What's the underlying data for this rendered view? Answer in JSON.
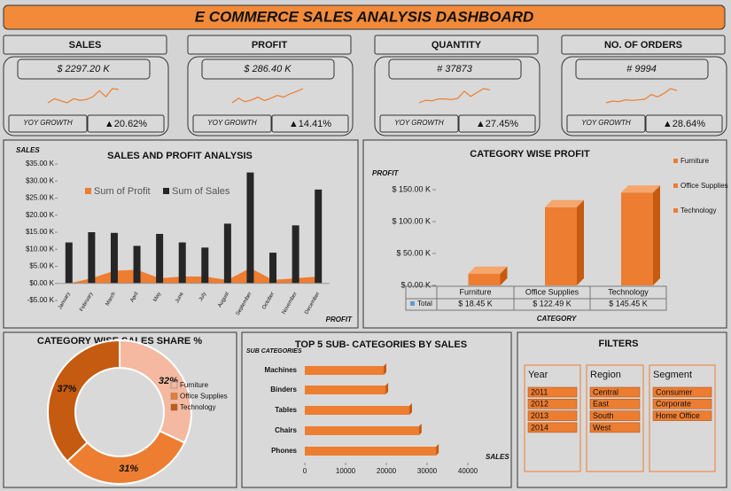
{
  "title": "E COMMERCE SALES ANALYSIS DASHBOARD",
  "kpis": [
    {
      "label": "SALES",
      "value": "$ 2297.20 K",
      "growth_label": "YOY GROWTH",
      "growth": "▲20.62%",
      "trend": [
        3,
        4,
        3.5,
        3,
        4,
        3.6,
        3.8,
        4.5,
        6,
        4.5,
        6.5,
        6.3
      ]
    },
    {
      "label": "PROFIT",
      "value": "$ 286.40 K",
      "growth_label": "YOY GROWTH",
      "growth": "▲14.41%",
      "trend": [
        3,
        3.8,
        3.2,
        3.5,
        4,
        3.4,
        3.8,
        4.3,
        4,
        4.6,
        5,
        5.5
      ]
    },
    {
      "label": "QUANTITY",
      "value": "# 37873",
      "growth_label": "YOY GROWTH",
      "growth": "▲27.45%",
      "trend": [
        3,
        3.4,
        3.3,
        3.6,
        3.6,
        3.5,
        3.7,
        4.8,
        4,
        4.6,
        5.2,
        5
      ]
    },
    {
      "label": "NO. OF ORDERS",
      "value": "# 9994",
      "growth_label": "YOY GROWTH",
      "growth": "▲28.64%",
      "trend": [
        3,
        3.3,
        3.2,
        3.5,
        3.4,
        3.5,
        3.6,
        4.4,
        4,
        4.6,
        5.4,
        5.1
      ]
    }
  ],
  "chart_data": [
    {
      "type": "combo",
      "title": "SALES AND PROFIT ANALYSIS",
      "y_label": "SALES",
      "x_label": "PROFIT",
      "categories": [
        "January",
        "February",
        "March",
        "April",
        "May",
        "June",
        "July",
        "August",
        "September",
        "October",
        "November",
        "December"
      ],
      "series": [
        {
          "name": "Sum of Profit",
          "type": "area",
          "color": "#ed7d31",
          "values": [
            0,
            1.5,
            3.7,
            4,
            1.5,
            2,
            2,
            1,
            4.5,
            1,
            1.5,
            2
          ]
        },
        {
          "name": "Sum of Sales",
          "type": "bar",
          "color": "#262626",
          "values": [
            12,
            15,
            14.8,
            11,
            14.5,
            12,
            10.5,
            17.5,
            32.5,
            9,
            17,
            27.5
          ]
        }
      ],
      "ylim": [
        -5,
        35
      ],
      "yticks": [
        {
          "value": 35,
          "label": "$35.00 K"
        },
        {
          "value": 30,
          "label": "$30.00 K"
        },
        {
          "value": 25,
          "label": "$25.00 K"
        },
        {
          "value": 20,
          "label": "$20.00 K"
        },
        {
          "value": 15,
          "label": "$15.00 K"
        },
        {
          "value": 10,
          "label": "$10.00 K"
        },
        {
          "value": 5,
          "label": "$5.00 K"
        },
        {
          "value": 0,
          "label": "$0.00 K"
        },
        {
          "value": -5,
          "label": "-$5.00 K"
        }
      ]
    },
    {
      "type": "bar3d",
      "title": "CATEGORY WISE PROFIT",
      "y_label": "PROFIT",
      "x_label": "CATEGORY",
      "row_label": "Total",
      "categories": [
        "Furniture",
        "Office Supplies",
        "Technology"
      ],
      "values": [
        18.45,
        122.49,
        145.45
      ],
      "value_labels": [
        "$ 18.45 K",
        "$ 122.49 K",
        "$ 145.45 K"
      ],
      "color": "#ed7d31",
      "ylim": [
        0,
        150
      ],
      "yticks": [
        {
          "value": 150,
          "label": "$ 150.00 K"
        },
        {
          "value": 100,
          "label": "$ 100.00 K"
        },
        {
          "value": 50,
          "label": "$ 50.00 K"
        },
        {
          "value": 0,
          "label": "$ 0.00 K"
        }
      ]
    },
    {
      "type": "donut",
      "title": "CATEGORY WISE SALES SHARE %",
      "categories": [
        "Furniture",
        "Office Supplies",
        "Technology"
      ],
      "values": [
        32,
        31,
        37
      ],
      "value_labels": [
        "32%",
        "31%",
        "37%"
      ],
      "colors": [
        "#f4b9a0",
        "#ed7d31",
        "#c55a11"
      ]
    },
    {
      "type": "hbar",
      "title": "TOP 5 SUB- CATEGORIES BY SALES",
      "y_label": "SUB CATEGORIES",
      "x_label": "SALES",
      "categories": [
        "Machines",
        "Binders",
        "Tables",
        "Chairs",
        "Phones"
      ],
      "values": [
        19350,
        19800,
        25650,
        28000,
        32200
      ],
      "color": "#ed7d31",
      "xlim": [
        0,
        40000
      ],
      "xticks": [
        0,
        10000,
        20000,
        30000,
        40000
      ]
    }
  ],
  "filters": {
    "title": "FILTERS",
    "slicers": [
      {
        "name": "Year",
        "items": [
          "2011",
          "2012",
          "2013",
          "2014"
        ]
      },
      {
        "name": "Region",
        "items": [
          "Central",
          "East",
          "South",
          "West"
        ]
      },
      {
        "name": "Segment",
        "items": [
          "Consumer",
          "Corporate",
          "Home Office"
        ]
      }
    ]
  }
}
